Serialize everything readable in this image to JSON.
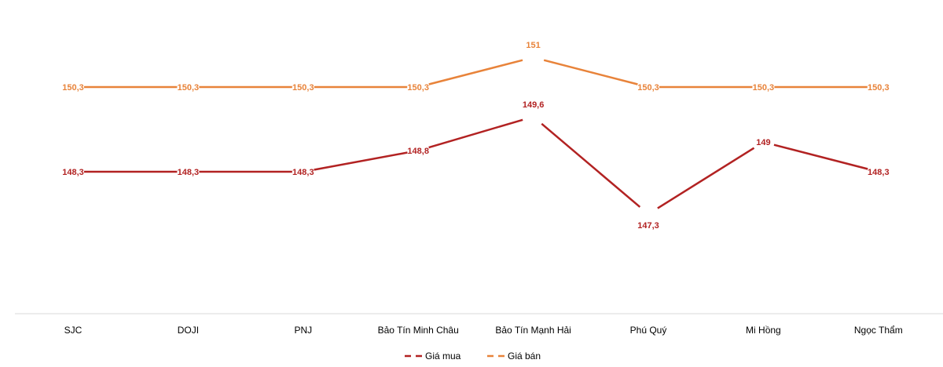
{
  "chart_data": {
    "type": "line",
    "title": "",
    "xlabel": "",
    "ylabel": "",
    "categories": [
      "SJC",
      "DOJI",
      "PNJ",
      "Bảo Tín Minh Châu",
      "Bảo Tín Mạnh Hải",
      "Phú Quý",
      "Mi Hồng",
      "Ngọc Thẩm"
    ],
    "series": [
      {
        "name": "Giá mua",
        "color": "#B22222",
        "values": [
          148.3,
          148.3,
          148.3,
          148.8,
          149.6,
          147.3,
          149,
          148.3
        ],
        "labels": [
          "148,3",
          "148,3",
          "148,3",
          "148,8",
          "149,6",
          "147,3",
          "149",
          "148,3"
        ],
        "label_pos": [
          "left",
          "center",
          "right",
          "center",
          "above",
          "below",
          "center",
          "right"
        ]
      },
      {
        "name": "Giá bán",
        "color": "#E8833A",
        "values": [
          150.3,
          150.3,
          150.3,
          150.3,
          151,
          150.3,
          150.3,
          150.3
        ],
        "labels": [
          "150,3",
          "150,3",
          "150,3",
          "150,3",
          "151",
          "150,3",
          "150,3",
          "150,3"
        ],
        "label_pos": [
          "left",
          "center",
          "right",
          "center",
          "above",
          "center",
          "center",
          "right"
        ]
      }
    ],
    "grid": false,
    "yaxis_visible": false,
    "legend_position": "bottom"
  }
}
